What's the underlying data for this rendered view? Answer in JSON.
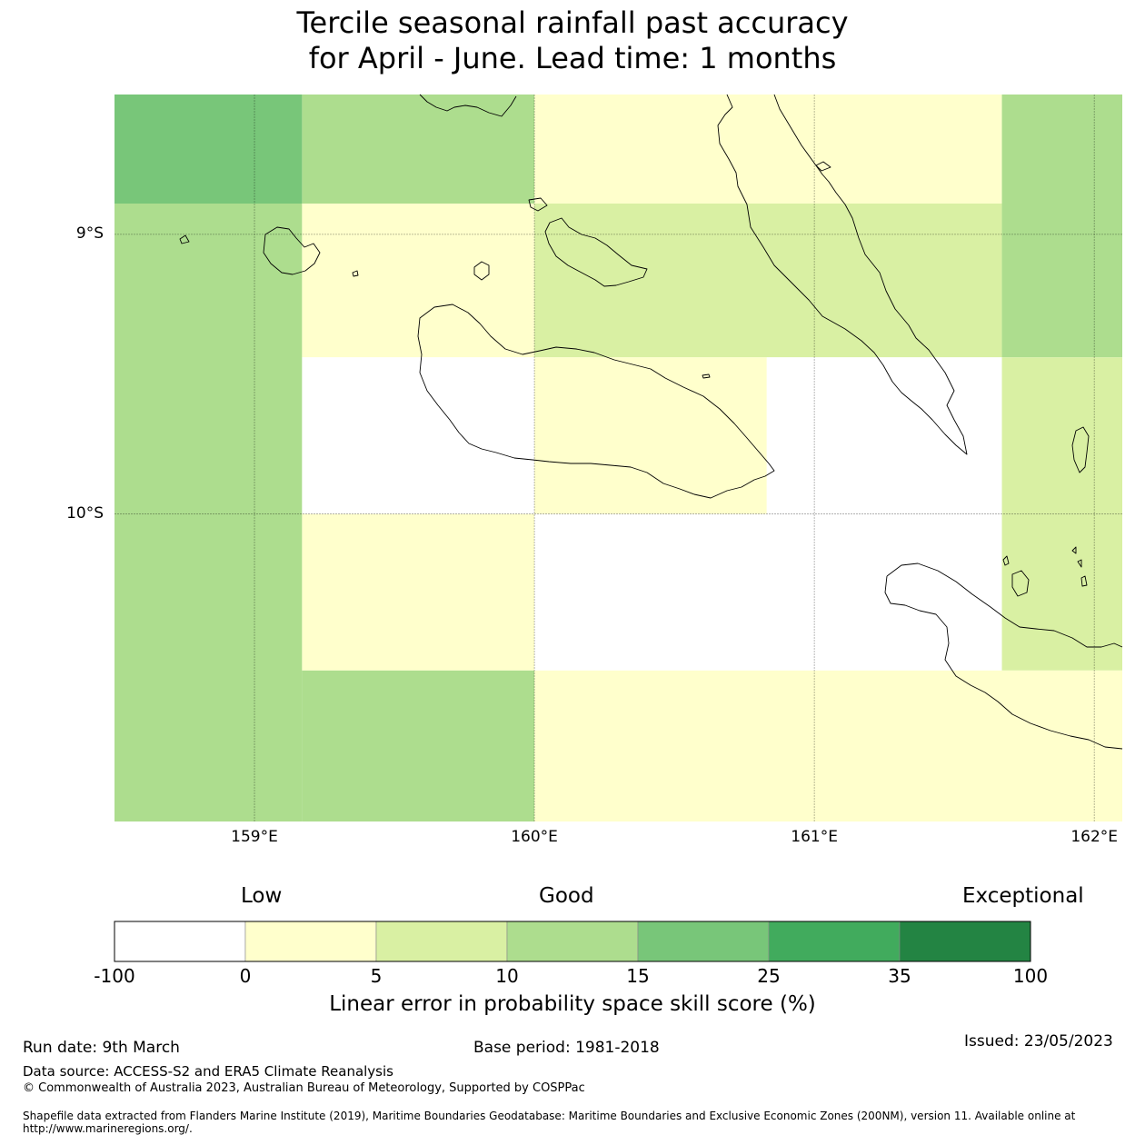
{
  "title": {
    "line1": "Tercile seasonal rainfall past accuracy",
    "line2": "for April - June. Lead time: 1 months"
  },
  "map": {
    "lon_range": [
      158.5,
      162.1
    ],
    "lat_range": [
      -11.1,
      -8.5
    ],
    "lat_ticks": [
      {
        "value": -9,
        "label": "9°S"
      },
      {
        "value": -10,
        "label": "10°S"
      }
    ],
    "lon_ticks": [
      {
        "value": 159,
        "label": "159°E"
      },
      {
        "value": 160,
        "label": "160°E"
      },
      {
        "value": 161,
        "label": "161°E"
      },
      {
        "value": 162,
        "label": "162°E"
      }
    ],
    "skill_grid": [
      {
        "lon": [
          158.5,
          159.17
        ],
        "lat": [
          -8.89,
          -8.5
        ],
        "cls": 4
      },
      {
        "lon": [
          159.17,
          160.0
        ],
        "lat": [
          -8.89,
          -8.5
        ],
        "cls": 3
      },
      {
        "lon": [
          160.0,
          161.67
        ],
        "lat": [
          -8.89,
          -8.5
        ],
        "cls": 1
      },
      {
        "lon": [
          161.67,
          162.1
        ],
        "lat": [
          -8.89,
          -8.5
        ],
        "cls": 3
      },
      {
        "lon": [
          158.5,
          159.17
        ],
        "lat": [
          -11.1,
          -8.89
        ],
        "cls": 3
      },
      {
        "lon": [
          159.17,
          160.0
        ],
        "lat": [
          -9.44,
          -8.89
        ],
        "cls": 1
      },
      {
        "lon": [
          160.0,
          161.67
        ],
        "lat": [
          -9.44,
          -8.89
        ],
        "cls": 2
      },
      {
        "lon": [
          161.67,
          162.1
        ],
        "lat": [
          -9.44,
          -8.89
        ],
        "cls": 3
      },
      {
        "lon": [
          159.17,
          160.0
        ],
        "lat": [
          -10.0,
          -9.44
        ],
        "cls": 0
      },
      {
        "lon": [
          160.0,
          160.83
        ],
        "lat": [
          -10.0,
          -9.44
        ],
        "cls": 1
      },
      {
        "lon": [
          160.83,
          161.67
        ],
        "lat": [
          -10.0,
          -9.44
        ],
        "cls": 0
      },
      {
        "lon": [
          161.67,
          162.1
        ],
        "lat": [
          -10.0,
          -9.44
        ],
        "cls": 2
      },
      {
        "lon": [
          159.17,
          160.0
        ],
        "lat": [
          -10.56,
          -10.0
        ],
        "cls": 1
      },
      {
        "lon": [
          160.0,
          161.67
        ],
        "lat": [
          -10.56,
          -10.0
        ],
        "cls": 0
      },
      {
        "lon": [
          161.67,
          162.1
        ],
        "lat": [
          -10.56,
          -10.0
        ],
        "cls": 2
      },
      {
        "lon": [
          159.17,
          160.0
        ],
        "lat": [
          -11.1,
          -10.56
        ],
        "cls": 3
      },
      {
        "lon": [
          160.0,
          162.1
        ],
        "lat": [
          -11.1,
          -10.56
        ],
        "cls": 1
      }
    ]
  },
  "colorbar": {
    "categories": {
      "low": "Low",
      "good": "Good",
      "exceptional": "Exceptional"
    },
    "bins": [
      {
        "from": -100,
        "to": 0,
        "color": "#ffffff"
      },
      {
        "from": 0,
        "to": 5,
        "color": "#ffffcc"
      },
      {
        "from": 5,
        "to": 10,
        "color": "#d9f0a3"
      },
      {
        "from": 10,
        "to": 15,
        "color": "#addd8e"
      },
      {
        "from": 15,
        "to": 25,
        "color": "#78c679"
      },
      {
        "from": 25,
        "to": 35,
        "color": "#41ab5d"
      },
      {
        "from": 35,
        "to": 100,
        "color": "#238443"
      }
    ],
    "ticks": [
      "-100",
      "0",
      "5",
      "10",
      "15",
      "25",
      "35",
      "100"
    ],
    "label": "Linear error in probability space skill score (%)"
  },
  "footer": {
    "run_date": "Run date: 9th March",
    "base_period": "Base period: 1981-2018",
    "issued": "Issued: 23/05/2023",
    "data_source": "Data source: ACCESS-S2 and ERA5 Climate Reanalysis",
    "copyright": "© Commonwealth of Australia 2023, Australian Bureau of Meteorology, Supported by COSPPac",
    "shapefile": "Shapefile data extracted from Flanders Marine Institute (2019), Maritime Boundaries Geodatabase: Maritime Boundaries and Exclusive Economic Zones (200NM), version 11. Available online at http://www.marineregions.org/."
  }
}
